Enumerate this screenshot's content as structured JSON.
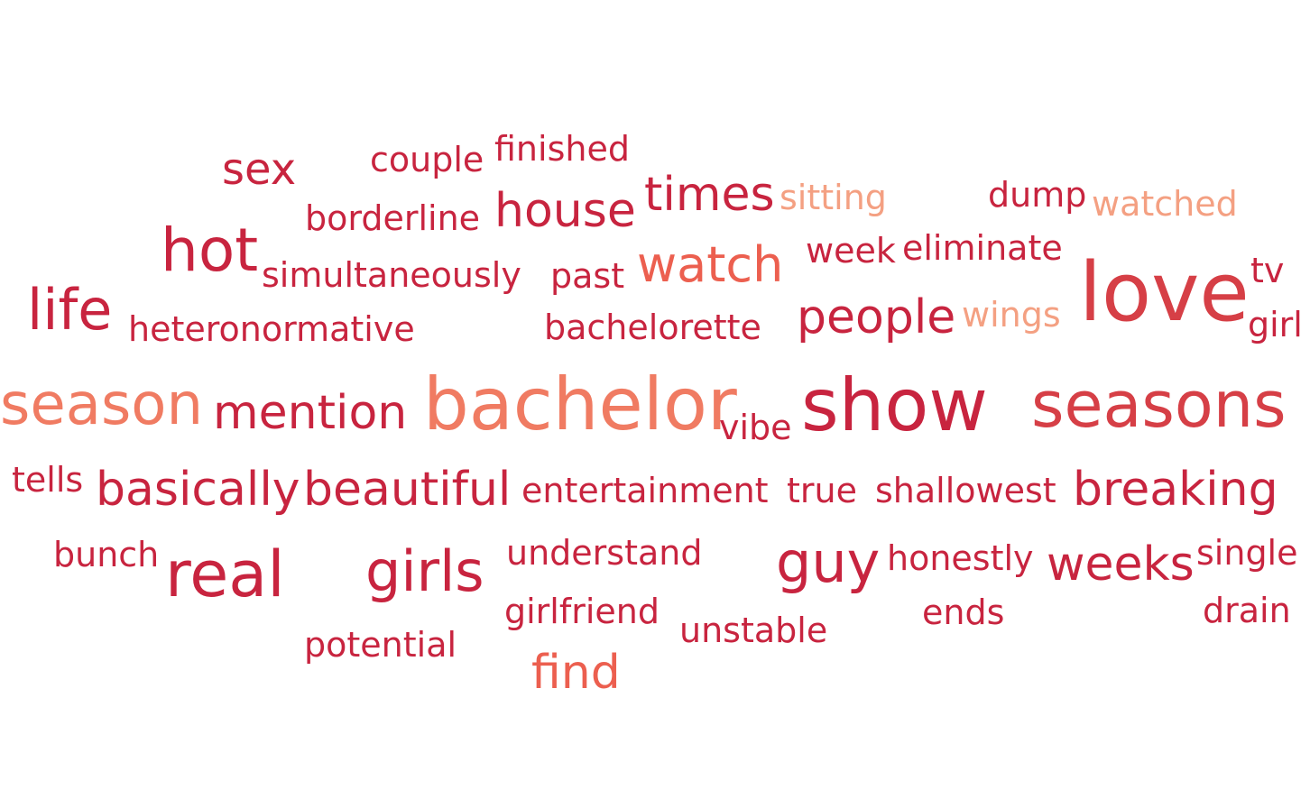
{
  "palette": {
    "crimson": "#c8243f",
    "red": "#d63f46",
    "coral": "#ec5f4f",
    "salmon": "#f07b62",
    "peach": "#f4a082"
  },
  "words": [
    {
      "text": "sex",
      "color": "crimson"
    },
    {
      "text": "couple",
      "color": "crimson"
    },
    {
      "text": "finished",
      "color": "crimson"
    },
    {
      "text": "borderline",
      "color": "crimson"
    },
    {
      "text": "house",
      "color": "crimson"
    },
    {
      "text": "times",
      "color": "crimson"
    },
    {
      "text": "sitting",
      "color": "peach"
    },
    {
      "text": "dump",
      "color": "crimson"
    },
    {
      "text": "watched",
      "color": "peach"
    },
    {
      "text": "hot",
      "color": "crimson"
    },
    {
      "text": "simultaneously",
      "color": "crimson"
    },
    {
      "text": "past",
      "color": "crimson"
    },
    {
      "text": "watch",
      "color": "coral"
    },
    {
      "text": "week",
      "color": "crimson"
    },
    {
      "text": "eliminate",
      "color": "crimson"
    },
    {
      "text": "love",
      "color": "red"
    },
    {
      "text": "tv",
      "color": "crimson"
    },
    {
      "text": "life",
      "color": "crimson"
    },
    {
      "text": "heteronormative",
      "color": "crimson"
    },
    {
      "text": "bachelorette",
      "color": "crimson"
    },
    {
      "text": "people",
      "color": "crimson"
    },
    {
      "text": "wings",
      "color": "peach"
    },
    {
      "text": "girl",
      "color": "crimson"
    },
    {
      "text": "season",
      "color": "salmon"
    },
    {
      "text": "mention",
      "color": "crimson"
    },
    {
      "text": "bachelor",
      "color": "salmon"
    },
    {
      "text": "vibe",
      "color": "crimson"
    },
    {
      "text": "show",
      "color": "crimson"
    },
    {
      "text": "seasons",
      "color": "red"
    },
    {
      "text": "tells",
      "color": "crimson"
    },
    {
      "text": "basically",
      "color": "crimson"
    },
    {
      "text": "beautiful",
      "color": "crimson"
    },
    {
      "text": "entertainment",
      "color": "crimson"
    },
    {
      "text": "true",
      "color": "crimson"
    },
    {
      "text": "shallowest",
      "color": "crimson"
    },
    {
      "text": "breaking",
      "color": "crimson"
    },
    {
      "text": "bunch",
      "color": "crimson"
    },
    {
      "text": "real",
      "color": "crimson"
    },
    {
      "text": "girls",
      "color": "crimson"
    },
    {
      "text": "understand",
      "color": "crimson"
    },
    {
      "text": "guy",
      "color": "crimson"
    },
    {
      "text": "honestly",
      "color": "crimson"
    },
    {
      "text": "weeks",
      "color": "crimson"
    },
    {
      "text": "single",
      "color": "crimson"
    },
    {
      "text": "girlfriend",
      "color": "crimson"
    },
    {
      "text": "unstable",
      "color": "crimson"
    },
    {
      "text": "ends",
      "color": "crimson"
    },
    {
      "text": "drain",
      "color": "crimson"
    },
    {
      "text": "potential",
      "color": "crimson"
    },
    {
      "text": "find",
      "color": "coral"
    }
  ]
}
